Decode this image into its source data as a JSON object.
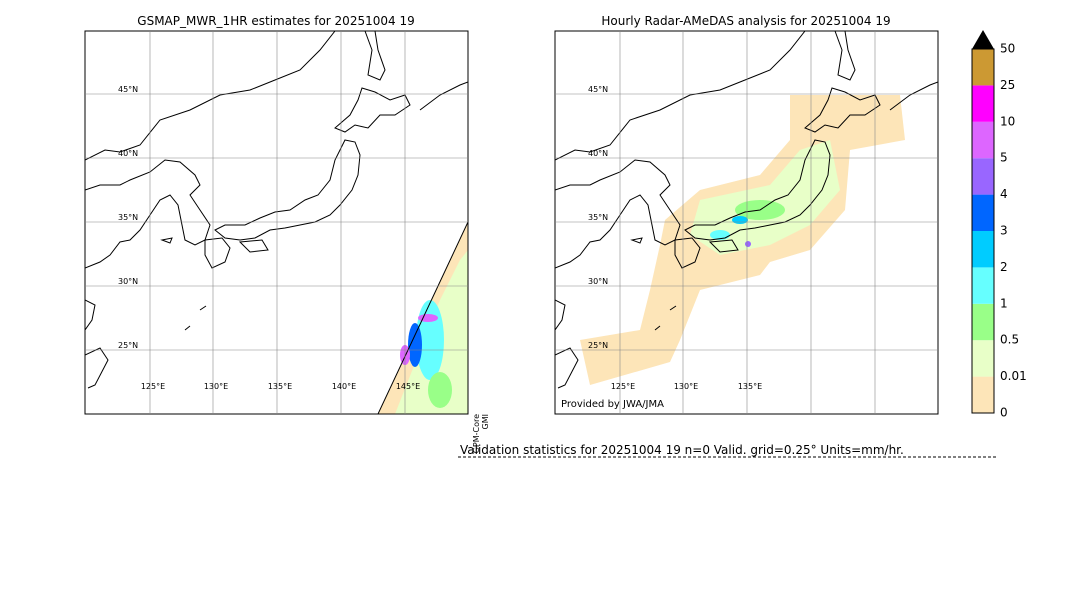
{
  "panels": [
    {
      "title": "GSMAP_MWR_1HR estimates for 20251004 19",
      "lat_labels": [
        "45°N",
        "40°N",
        "35°N",
        "30°N",
        "25°N"
      ],
      "lon_labels": [
        "125°E",
        "130°E",
        "135°E",
        "140°E",
        "145°E"
      ],
      "satellite": [
        "GPM-Core",
        "GMI"
      ]
    },
    {
      "title": "Hourly Radar-AMeDAS analysis for 20251004 19",
      "lat_labels": [
        "45°N",
        "40°N",
        "35°N",
        "30°N",
        "25°N"
      ],
      "lon_labels": [
        "125°E",
        "130°E",
        "135°E"
      ],
      "credit": "Provided by JWA/JMA"
    }
  ],
  "colorbar": {
    "labels": [
      "0",
      "0.01",
      "0.5",
      "1",
      "2",
      "3",
      "4",
      "5",
      "10",
      "25",
      "50"
    ],
    "colors": [
      "#fde5b8",
      "#e8ffc8",
      "#99ff88",
      "#66ffff",
      "#00ccff",
      "#0066ff",
      "#9966ff",
      "#dd66ff",
      "#ff00ff",
      "#cc9933"
    ]
  },
  "validation": "Validation statistics for 20251004 19  n=0 Valid. grid=0.25° Units=mm/hr."
}
